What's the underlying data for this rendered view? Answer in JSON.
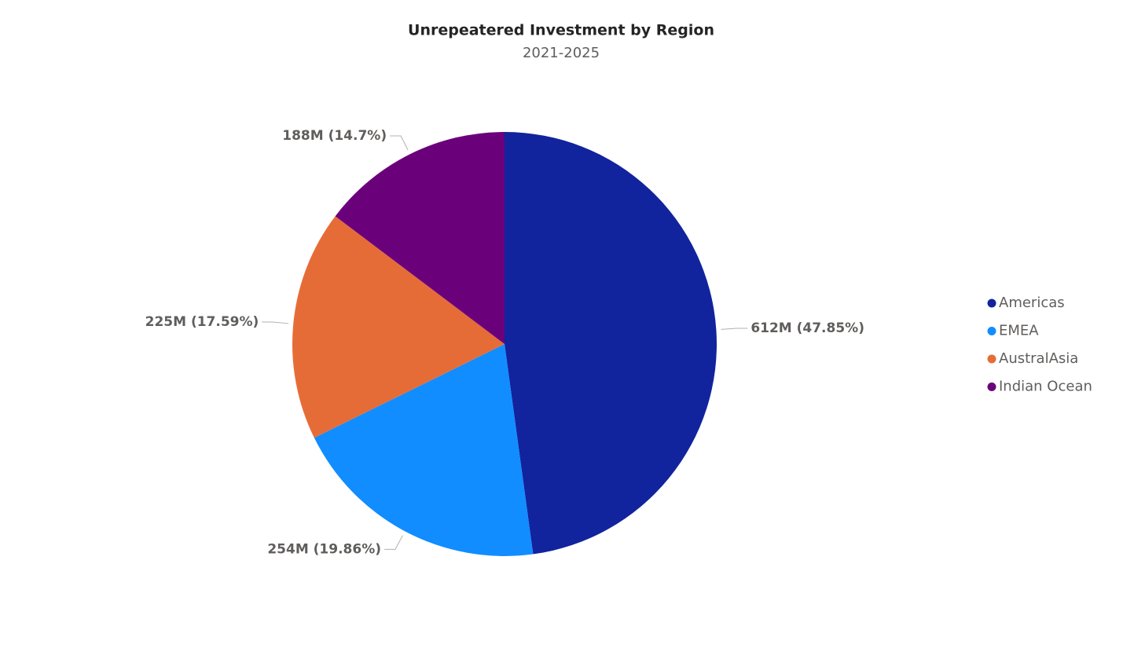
{
  "chart_data": {
    "type": "pie",
    "title": "Unrepeatered Investment by Region",
    "subtitle": "2021-2025",
    "categories": [
      "Americas",
      "EMEA",
      "AustralAsia",
      "Indian Ocean"
    ],
    "values": [
      612,
      254,
      225,
      188
    ],
    "value_labels": [
      "612M (47.85%)",
      "254M (19.86%)",
      "225M (17.59%)",
      "188M (14.7%)"
    ],
    "colors": [
      "#12239e",
      "#118dff",
      "#e66c37",
      "#6b007b"
    ],
    "legend": "right"
  }
}
